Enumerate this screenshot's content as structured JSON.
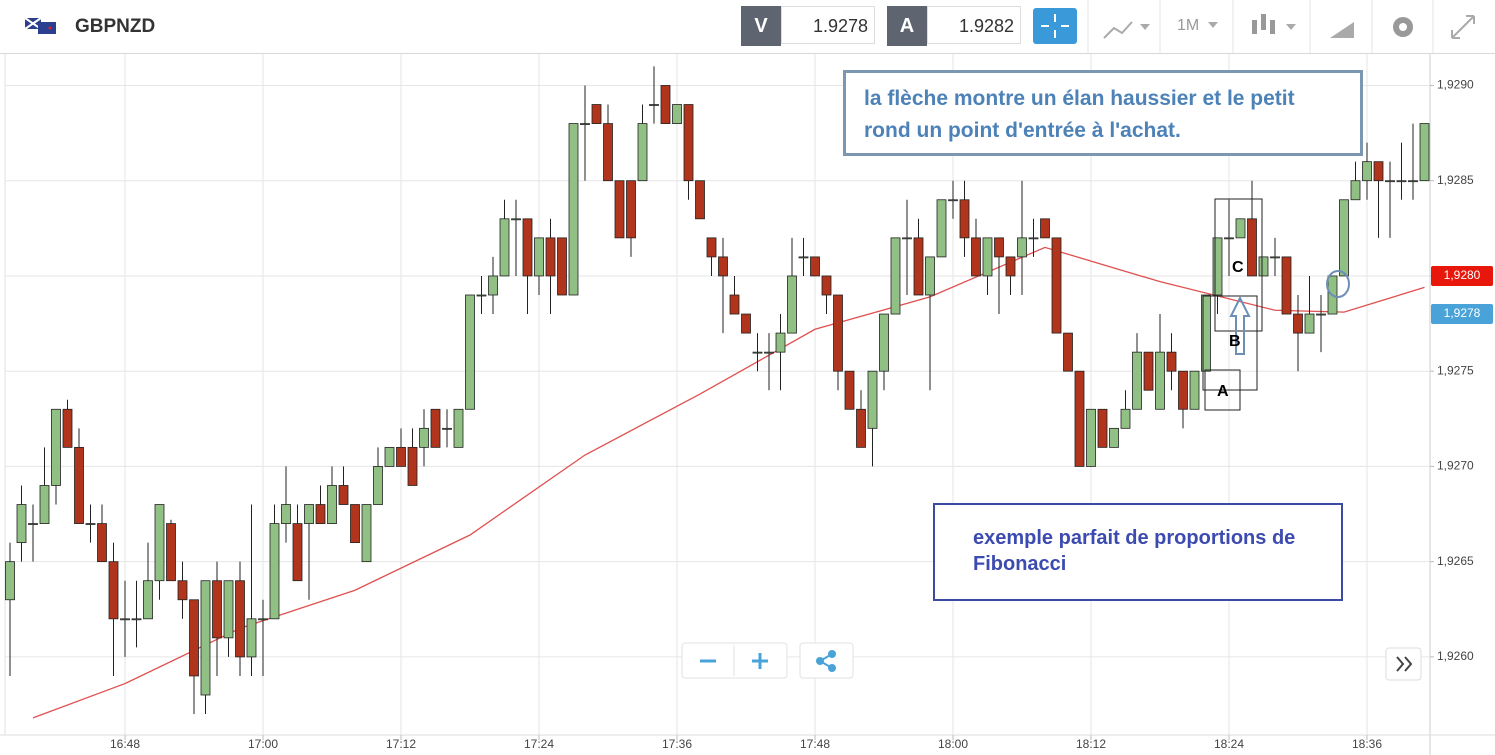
{
  "toolbar": {
    "symbol": "GBPNZD",
    "sell_label": "V",
    "sell_price": 1.9278,
    "buy_label": "A",
    "buy_price": 1.9282,
    "timeframe": "1M"
  },
  "chart_data": {
    "type": "candlestick",
    "x": [
      "16:38",
      "16:39",
      "16:40",
      "16:41",
      "16:42",
      "16:43",
      "16:44",
      "16:45",
      "16:46",
      "16:47",
      "16:48",
      "16:49",
      "16:50",
      "16:51",
      "16:52",
      "16:53",
      "16:54",
      "16:55",
      "16:56",
      "16:57",
      "16:58",
      "16:59",
      "17:00",
      "17:01",
      "17:02",
      "17:03",
      "17:04",
      "17:05",
      "17:06",
      "17:07",
      "17:08",
      "17:09",
      "17:10",
      "17:11",
      "17:12",
      "17:13",
      "17:14",
      "17:15",
      "17:16",
      "17:17",
      "17:18",
      "17:19",
      "17:20",
      "17:21",
      "17:22",
      "17:23",
      "17:24",
      "17:25",
      "17:26",
      "17:27",
      "17:28",
      "17:29",
      "17:30",
      "17:31",
      "17:32",
      "17:33",
      "17:34",
      "17:35",
      "17:36",
      "17:37",
      "17:38",
      "17:39",
      "17:40",
      "17:41",
      "17:42",
      "17:43",
      "17:44",
      "17:45",
      "17:46",
      "17:47",
      "17:48",
      "17:49",
      "17:50",
      "17:51",
      "17:52",
      "17:53",
      "17:54",
      "17:55",
      "17:56",
      "17:57",
      "17:58",
      "17:59",
      "18:00",
      "18:01",
      "18:02",
      "18:03",
      "18:04",
      "18:05",
      "18:06",
      "18:07",
      "18:08",
      "18:09",
      "18:10",
      "18:11",
      "18:12",
      "18:13",
      "18:14",
      "18:15",
      "18:16",
      "18:17",
      "18:18",
      "18:19",
      "18:20",
      "18:21",
      "18:22",
      "18:23",
      "18:24",
      "18:25",
      "18:26",
      "18:27",
      "18:28",
      "18:29",
      "18:30",
      "18:31",
      "18:32",
      "18:33",
      "18:34",
      "18:35",
      "18:36",
      "18:37",
      "18:38",
      "18:39",
      "18:40",
      "18:41"
    ],
    "open": [
      1.9263,
      1.9266,
      1.9267,
      1.9267,
      1.9269,
      1.9273,
      1.9271,
      1.9267,
      1.9267,
      1.9265,
      1.9262,
      1.9262,
      1.9262,
      1.9264,
      1.9267,
      1.9264,
      1.9263,
      1.9258,
      1.9264,
      1.9261,
      1.9264,
      1.926,
      1.9262,
      1.9262,
      1.9267,
      1.9267,
      1.9267,
      1.9268,
      1.9267,
      1.9269,
      1.9268,
      1.9265,
      1.9268,
      1.927,
      1.9271,
      1.9271,
      1.9271,
      1.9273,
      1.9272,
      1.9271,
      1.9273,
      1.9279,
      1.9279,
      1.928,
      1.9283,
      1.9283,
      1.928,
      1.9282,
      1.9282,
      1.9279,
      1.9288,
      1.9289,
      1.9288,
      1.9285,
      1.9285,
      1.9285,
      1.9289,
      1.929,
      1.9288,
      1.9289,
      1.9285,
      1.9282,
      1.9281,
      1.9279,
      1.9278,
      1.9276,
      1.9276,
      1.9276,
      1.9277,
      1.9281,
      1.9281,
      1.928,
      1.9279,
      1.9275,
      1.9273,
      1.9272,
      1.9275,
      1.9278,
      1.9282,
      1.9282,
      1.9279,
      1.9281,
      1.9284,
      1.9284,
      1.9282,
      1.928,
      1.9282,
      1.9281,
      1.9281,
      1.9282,
      1.9283,
      1.9282,
      1.9277,
      1.9275,
      1.927,
      1.9273,
      1.9271,
      1.9272,
      1.9273,
      1.9276,
      1.9273,
      1.9276,
      1.9275,
      1.9273,
      1.9275,
      1.9279,
      1.9282,
      1.9282,
      1.9283,
      1.928,
      1.9281,
      1.9281,
      1.9278,
      1.9277,
      1.9278,
      1.9278,
      1.928,
      1.9284,
      1.9285,
      1.9286,
      1.9285,
      1.9285,
      1.9285,
      1.9285
    ],
    "high": [
      1.9266,
      1.9269,
      1.9268,
      1.9271,
      1.9273,
      1.92735,
      1.9272,
      1.9268,
      1.9268,
      1.9266,
      1.9264,
      1.9264,
      1.9266,
      1.9268,
      1.92672,
      1.9265,
      1.9263,
      1.9264,
      1.9265,
      1.9264,
      1.9265,
      1.9268,
      1.9263,
      1.9268,
      1.927,
      1.9268,
      1.9268,
      1.9269,
      1.927,
      1.927,
      1.9268,
      1.9268,
      1.9271,
      1.9271,
      1.9272,
      1.9272,
      1.9273,
      1.9273,
      1.9273,
      1.9273,
      1.9279,
      1.928,
      1.9281,
      1.9284,
      1.9284,
      1.9283,
      1.9282,
      1.9283,
      1.9282,
      1.9288,
      1.929,
      1.9289,
      1.9289,
      1.9285,
      1.9285,
      1.9289,
      1.9291,
      1.929,
      1.9289,
      1.9289,
      1.9285,
      1.9282,
      1.9282,
      1.928,
      1.9278,
      1.9277,
      1.9277,
      1.9278,
      1.9282,
      1.9282,
      1.9281,
      1.928,
      1.9279,
      1.9275,
      1.9274,
      1.9275,
      1.9278,
      1.9282,
      1.9284,
      1.9283,
      1.9281,
      1.9284,
      1.9285,
      1.9285,
      1.9283,
      1.9282,
      1.9282,
      1.9281,
      1.9285,
      1.9283,
      1.9283,
      1.9282,
      1.9277,
      1.9275,
      1.9273,
      1.9273,
      1.9272,
      1.9274,
      1.9277,
      1.9276,
      1.9278,
      1.9277,
      1.9275,
      1.9275,
      1.9279,
      1.9282,
      1.9284,
      1.9283,
      1.9285,
      1.9281,
      1.9282,
      1.9281,
      1.9279,
      1.928,
      1.9279,
      1.928,
      1.9284,
      1.9286,
      1.9287,
      1.9286,
      1.9286,
      1.9287,
      1.9288,
      1.9288
    ],
    "low": [
      1.9259,
      1.9265,
      1.9265,
      1.9267,
      1.9268,
      1.9271,
      1.9267,
      1.9266,
      1.9265,
      1.9259,
      1.926,
      1.92605,
      1.9262,
      1.9263,
      1.9264,
      1.9262,
      1.9257,
      1.9257,
      1.9259,
      1.926,
      1.9259,
      1.9259,
      1.9259,
      1.9262,
      1.9266,
      1.9264,
      1.9263,
      1.9267,
      1.9267,
      1.9268,
      1.9266,
      1.9265,
      1.9268,
      1.927,
      1.927,
      1.9269,
      1.927,
      1.9271,
      1.9271,
      1.9271,
      1.9273,
      1.9278,
      1.9278,
      1.928,
      1.928,
      1.9278,
      1.9279,
      1.9278,
      1.9279,
      1.9279,
      1.9285,
      1.9288,
      1.9285,
      1.9282,
      1.9281,
      1.9285,
      1.9288,
      1.9288,
      1.9288,
      1.9284,
      1.9283,
      1.928,
      1.9277,
      1.9278,
      1.9277,
      1.9275,
      1.9274,
      1.9274,
      1.9277,
      1.928,
      1.928,
      1.9278,
      1.9274,
      1.9273,
      1.9271,
      1.927,
      1.9274,
      1.9278,
      1.9279,
      1.9279,
      1.9274,
      1.9281,
      1.9283,
      1.9281,
      1.928,
      1.9279,
      1.9278,
      1.9279,
      1.9279,
      1.9281,
      1.9282,
      1.9277,
      1.9275,
      1.927,
      1.927,
      1.9271,
      1.9271,
      1.9272,
      1.9273,
      1.9274,
      1.9273,
      1.9274,
      1.9272,
      1.9273,
      1.9275,
      1.9278,
      1.928,
      1.9282,
      1.928,
      1.928,
      1.928,
      1.9278,
      1.9275,
      1.9277,
      1.9276,
      1.9278,
      1.928,
      1.9284,
      1.9284,
      1.9282,
      1.9282,
      1.9284,
      1.9284,
      1.9285
    ],
    "close": [
      1.9265,
      1.9268,
      1.9267,
      1.9269,
      1.9273,
      1.9271,
      1.9267,
      1.9267,
      1.9265,
      1.9262,
      1.9262,
      1.9262,
      1.9264,
      1.9268,
      1.9264,
      1.9263,
      1.9259,
      1.9264,
      1.9261,
      1.9264,
      1.926,
      1.9262,
      1.9262,
      1.9267,
      1.9268,
      1.9264,
      1.9268,
      1.9267,
      1.9269,
      1.9268,
      1.9266,
      1.9268,
      1.927,
      1.9271,
      1.927,
      1.9269,
      1.9272,
      1.9271,
      1.9272,
      1.9273,
      1.9279,
      1.9279,
      1.928,
      1.9283,
      1.9283,
      1.928,
      1.9282,
      1.928,
      1.9279,
      1.9288,
      1.9288,
      1.9288,
      1.9285,
      1.9282,
      1.9282,
      1.9288,
      1.9289,
      1.9288,
      1.9289,
      1.9285,
      1.9283,
      1.9281,
      1.928,
      1.9278,
      1.9277,
      1.9276,
      1.9276,
      1.9277,
      1.928,
      1.9281,
      1.928,
      1.9279,
      1.9275,
      1.9273,
      1.9271,
      1.9275,
      1.9278,
      1.9282,
      1.9282,
      1.9279,
      1.9281,
      1.9284,
      1.9284,
      1.9282,
      1.928,
      1.9282,
      1.9281,
      1.928,
      1.9282,
      1.9282,
      1.9282,
      1.9277,
      1.9275,
      1.927,
      1.9273,
      1.9271,
      1.9272,
      1.9273,
      1.9276,
      1.9274,
      1.9276,
      1.9275,
      1.9273,
      1.9275,
      1.9279,
      1.9282,
      1.9282,
      1.9283,
      1.928,
      1.9281,
      1.9281,
      1.9278,
      1.9277,
      1.9278,
      1.9278,
      1.928,
      1.9284,
      1.9285,
      1.9286,
      1.9285,
      1.9285,
      1.9285,
      1.9285,
      1.9288
    ],
    "up_color": "#90c084",
    "down_color": "#b0351c",
    "ma": {
      "x": [
        "16:40",
        "16:48",
        "16:58",
        "17:08",
        "17:18",
        "17:28",
        "17:38",
        "17:48",
        "17:58",
        "18:08",
        "18:18",
        "18:28",
        "18:34",
        "18:41"
      ],
      "values": [
        1.92568,
        1.92586,
        1.92615,
        1.92635,
        1.92664,
        1.92706,
        1.92738,
        1.92772,
        1.92789,
        1.92815,
        1.92797,
        1.92782,
        1.92781,
        1.92794
      ],
      "color": "#e05050"
    },
    "ylim": [
      1.92559,
      1.92916
    ],
    "yticks": [
      {
        "value": 1.926,
        "label": "1,9260"
      },
      {
        "value": 1.9265,
        "label": "1,9265"
      },
      {
        "value": 1.927,
        "label": "1,9270"
      },
      {
        "value": 1.9275,
        "label": "1,9275"
      },
      {
        "value": 1.928,
        "label": "1,9280"
      },
      {
        "value": 1.9285,
        "label": "1,9285"
      },
      {
        "value": 1.929,
        "label": "1,9290"
      }
    ],
    "xticks": [
      "16:48",
      "17:00",
      "17:12",
      "17:24",
      "17:36",
      "17:48",
      "18:00",
      "18:12",
      "18:24",
      "18:36"
    ],
    "grid": true,
    "price_markers": [
      {
        "value": 1.928,
        "label": "1,9280",
        "color": "#e8170b"
      },
      {
        "value": 1.9278,
        "label": "1,9278",
        "color": "#4aa3d8"
      }
    ],
    "annotations": [
      "la flèche montre un élan haussier et le petit rond un point d'entrée à l'achat.",
      "exemple parfait de proportions de Fibonacci",
      "A",
      "B",
      "C"
    ]
  }
}
